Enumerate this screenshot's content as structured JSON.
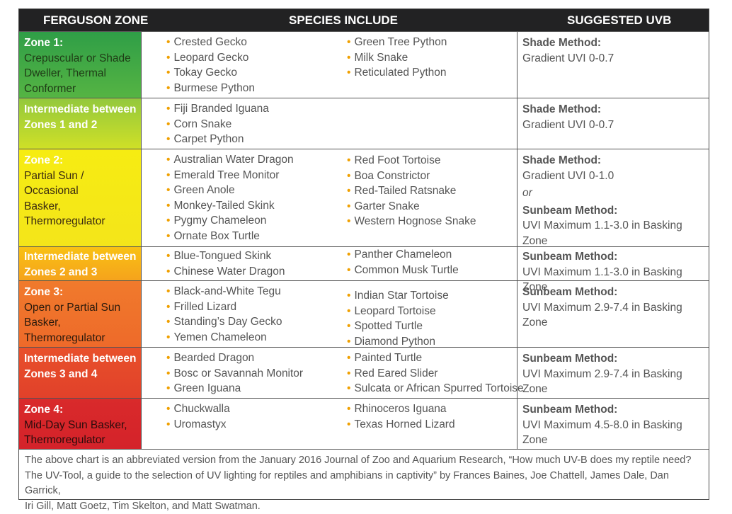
{
  "header": {
    "col1": "FERGUSON ZONE",
    "col2": "SPECIES INCLUDE",
    "col3": "SUGGESTED UVB"
  },
  "rows": [
    {
      "zone_title": "Zone 1:",
      "zone_sub": [
        "Crepuscular or Shade",
        "Dweller, Thermal Conformer"
      ],
      "species_left": [
        "Crested Gecko",
        "Leopard Gecko",
        "Tokay Gecko",
        "Burmese Python"
      ],
      "species_right": [
        "Green Tree Python",
        "Milk Snake",
        "Reticulated Python"
      ],
      "uvb": [
        {
          "method": "Shade Method:",
          "value": "Gradient UVI 0-0.7"
        }
      ]
    },
    {
      "zone_title": "Intermediate between",
      "zone_sub": [
        "Zones 1 and 2"
      ],
      "species_left": [
        "Fiji Branded Iguana",
        "Corn Snake",
        "Carpet Python"
      ],
      "species_right": [],
      "uvb": [
        {
          "method": "Shade Method:",
          "value": "Gradient UVI 0-0.7"
        }
      ]
    },
    {
      "zone_title": "Zone 2:",
      "zone_sub": [
        "Partial Sun / Occasional",
        "Basker, Thermoregulator"
      ],
      "species_left": [
        "Australian Water Dragon",
        "Emerald Tree Monitor",
        "Green Anole",
        "Monkey-Tailed Skink",
        "Pygmy Chameleon",
        "Ornate Box Turtle"
      ],
      "species_right": [
        "Red Foot Tortoise",
        "Boa Constrictor",
        "Red-Tailed Ratsnake",
        "Garter Snake",
        "Western Hognose Snake"
      ],
      "uvb": [
        {
          "method": "Shade Method:",
          "value": "Gradient UVI 0-1.0"
        },
        {
          "method": "Sunbeam Method:",
          "value": "UVI Maximum 1.1-3.0 in Basking Zone"
        }
      ],
      "uvb_or": "or"
    },
    {
      "zone_title": "Intermediate between",
      "zone_sub": [
        "Zones 2 and 3"
      ],
      "species_left": [
        "Blue-Tongued Skink",
        "Chinese Water Dragon"
      ],
      "species_right": [
        "Panther Chameleon",
        "Common Musk Turtle"
      ],
      "uvb": [
        {
          "method": "Sunbeam Method:",
          "value": "UVI Maximum 1.1-3.0 in Basking Zone"
        }
      ]
    },
    {
      "zone_title": "Zone 3:",
      "zone_sub": [
        "Open or Partial Sun",
        "Basker, Thermoregulator"
      ],
      "species_left": [
        "Black-and-White Tegu",
        "Frilled Lizard",
        "Standing’s Day Gecko",
        "Yemen Chameleon"
      ],
      "species_right": [
        "Indian Star Tortoise",
        "Leopard Tortoise",
        "Spotted Turtle",
        "Diamond Python"
      ],
      "uvb": [
        {
          "method": "Sunbeam Method:",
          "value": "UVI Maximum 2.9-7.4 in Basking Zone"
        }
      ]
    },
    {
      "zone_title": "Intermediate between",
      "zone_sub": [
        "Zones 3 and 4"
      ],
      "species_left": [
        "Bearded Dragon",
        "Bosc or Savannah Monitor",
        "Green Iguana"
      ],
      "species_right": [
        "Painted Turtle",
        "Red Eared Slider",
        "Sulcata or African Spurred Tortoise"
      ],
      "uvb": [
        {
          "method": "Sunbeam Method:",
          "value": "UVI Maximum 2.9-7.4 in Basking Zone"
        }
      ]
    },
    {
      "zone_title": "Zone 4:",
      "zone_sub": [
        "Mid-Day Sun Basker,",
        "Thermoregulator"
      ],
      "species_left": [
        "Chuckwalla",
        "Uromastyx"
      ],
      "species_right": [
        "Rhinoceros Iguana",
        "Texas Horned Lizard"
      ],
      "uvb": [
        {
          "method": "Sunbeam Method:",
          "value": "UVI Maximum 4.5-8.0 in Basking Zone"
        }
      ]
    }
  ],
  "footer": [
    "The above chart is an abbreviated version from the January 2016 Journal of Zoo and Aquarium Research, “How much UV-B does my reptile need?",
    "The UV-Tool, a guide to the selection of UV lighting for reptiles and amphibians in captivity” by Frances Baines, Joe Chattell, James Dale, Dan Garrick,",
    "Iri Gill, Matt Goetz, Tim Skelton, and Matt Swatman."
  ],
  "colors": {
    "header_bg": "#222223",
    "bullet": "#f0a000",
    "text_gray": "#555555",
    "zone1": "#3fae49",
    "zone2": "#f5ea14",
    "zone3": "#ee6a2a",
    "zone4": "#d7252b"
  }
}
